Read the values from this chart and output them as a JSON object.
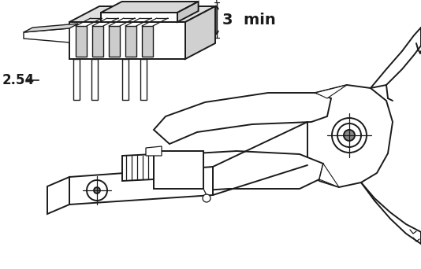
{
  "bg_color": "#ffffff",
  "line_color": "#1a1a1a",
  "lw": 1.4,
  "figsize": [
    5.34,
    3.42
  ],
  "dpi": 100,
  "label_254": "2.54",
  "label_3min": "3  min",
  "font_size_254": 12,
  "font_size_3min": 14
}
